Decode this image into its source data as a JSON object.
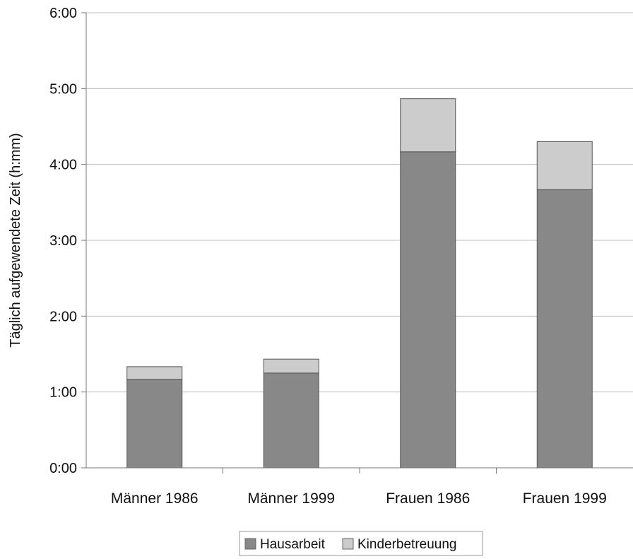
{
  "chart_data": {
    "type": "bar",
    "stacked": true,
    "title": "",
    "xlabel": "",
    "ylabel": "Täglich aufgewendete Zeit (h:mm)",
    "y_unit": "minutes",
    "ylim": [
      0,
      360
    ],
    "y_tick_values": [
      0,
      60,
      120,
      180,
      240,
      300,
      360
    ],
    "y_tick_labels": [
      "0:00",
      "1:00",
      "2:00",
      "3:00",
      "4:00",
      "5:00",
      "6:00"
    ],
    "grid": true,
    "legend_position": "bottom",
    "categories": [
      "Männer 1986",
      "Männer 1999",
      "Frauen 1986",
      "Frauen 1999"
    ],
    "series": [
      {
        "name": "Hausarbeit",
        "color": "#888888",
        "values": [
          70,
          75,
          250,
          220
        ]
      },
      {
        "name": "Kinderbetreuung",
        "color": "#cccccc",
        "values": [
          10,
          11,
          42,
          38
        ]
      }
    ]
  }
}
